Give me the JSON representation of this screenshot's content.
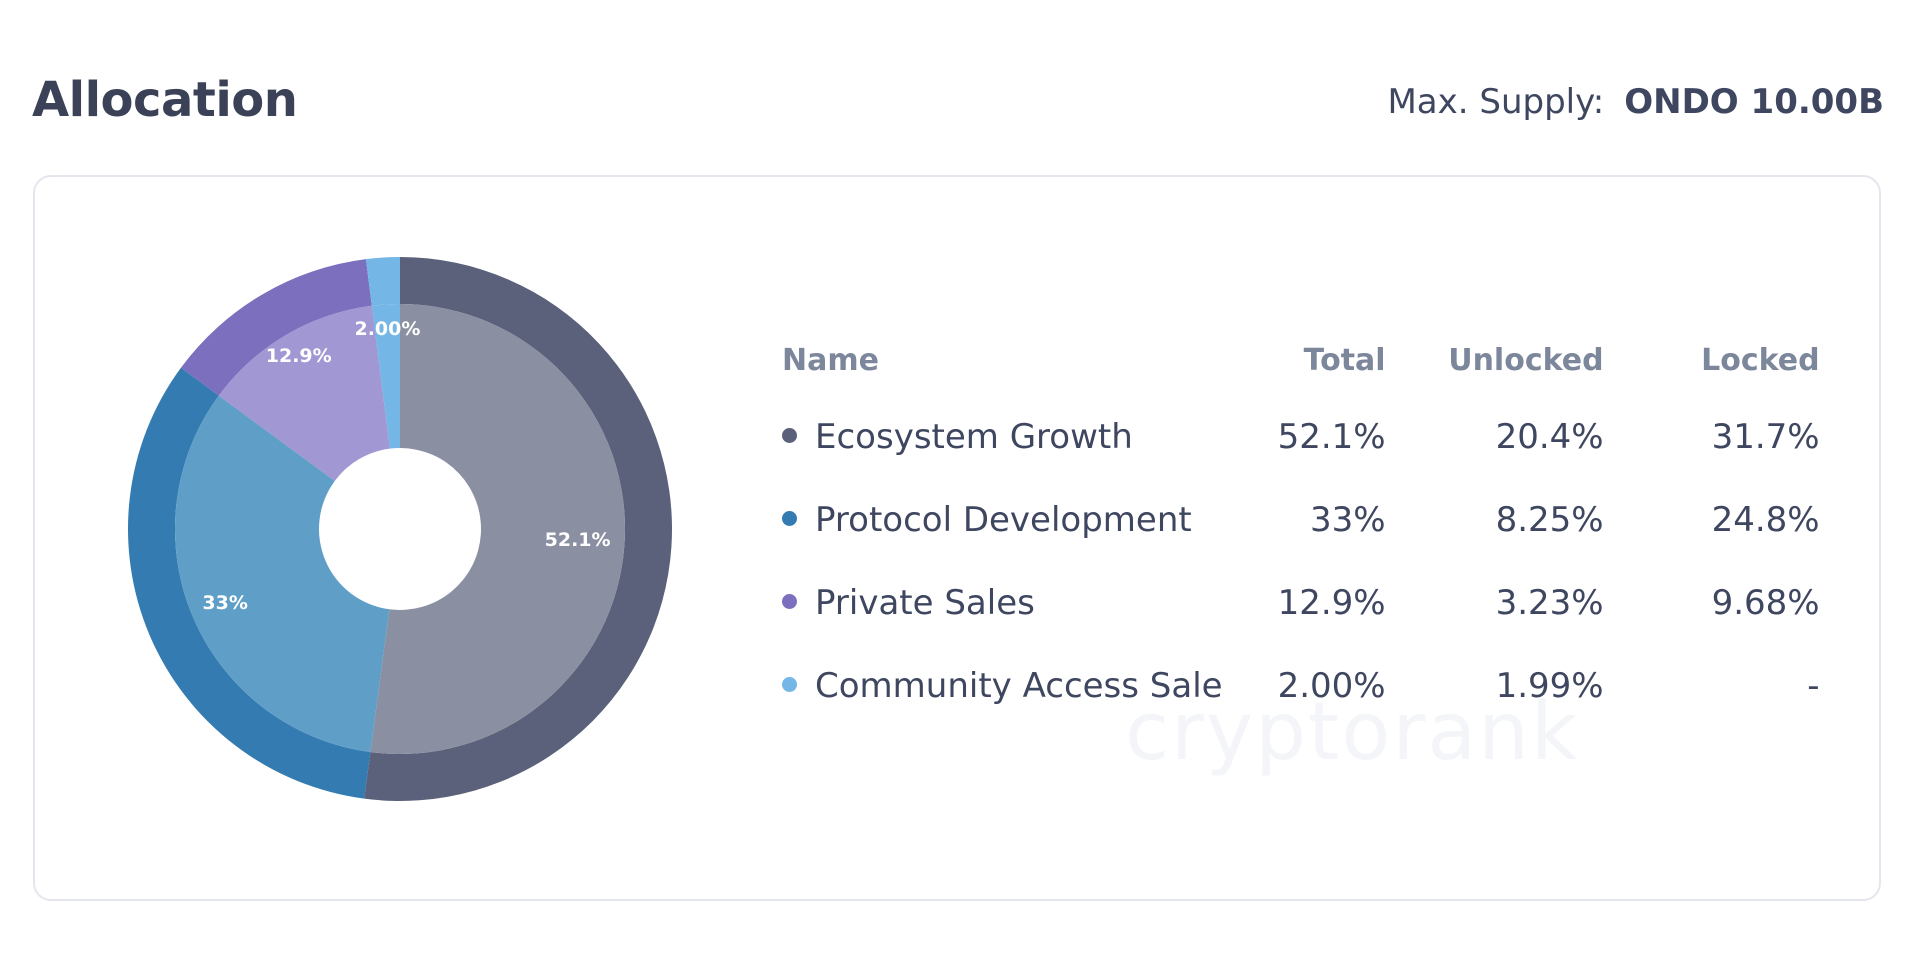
{
  "header": {
    "title": "Allocation",
    "supply_label": "Max. Supply:",
    "supply_value": "ONDO 10.00B"
  },
  "table": {
    "columns": [
      "Name",
      "Total",
      "Unlocked",
      "Locked"
    ]
  },
  "watermark": "cryptorank",
  "chart_data": {
    "type": "pie",
    "style": "donut",
    "title": "",
    "categories": [
      "Ecosystem Growth",
      "Protocol Development",
      "Private Sales",
      "Community Access Sale"
    ],
    "series": [
      {
        "name": "Total",
        "values": [
          52.1,
          33,
          12.9,
          2.0
        ]
      },
      {
        "name": "Unlocked",
        "values": [
          20.4,
          8.25,
          3.23,
          1.99
        ]
      },
      {
        "name": "Locked",
        "values": [
          31.7,
          24.8,
          9.68,
          null
        ]
      }
    ],
    "slices": [
      {
        "name": "Ecosystem Growth",
        "total": "52.1%",
        "unlocked": "20.4%",
        "locked": "31.7%",
        "label": "52.1%",
        "value": 52.1,
        "color": "#5b617a",
        "inner_color": "#8a8fa2",
        "label_color": "#ffffff"
      },
      {
        "name": "Protocol Development",
        "total": "33%",
        "unlocked": "8.25%",
        "locked": "24.8%",
        "label": "33%",
        "value": 33,
        "color": "#337bb1",
        "inner_color": "#5f9fc7",
        "label_color": "#ffffff"
      },
      {
        "name": "Private Sales",
        "total": "12.9%",
        "unlocked": "3.23%",
        "locked": "9.68%",
        "label": "12.9%",
        "value": 12.9,
        "color": "#7b6fbe",
        "inner_color": "#a097d3",
        "label_color": "#ffffff"
      },
      {
        "name": "Community Access Sale",
        "total": "2.00%",
        "unlocked": "1.99%",
        "locked": "-",
        "label": "2.00%",
        "value": 2.0,
        "color": "#74b6e6",
        "inner_color": "#74b6e6",
        "label_color": "#ffffff"
      }
    ],
    "legend_placement": "right"
  }
}
